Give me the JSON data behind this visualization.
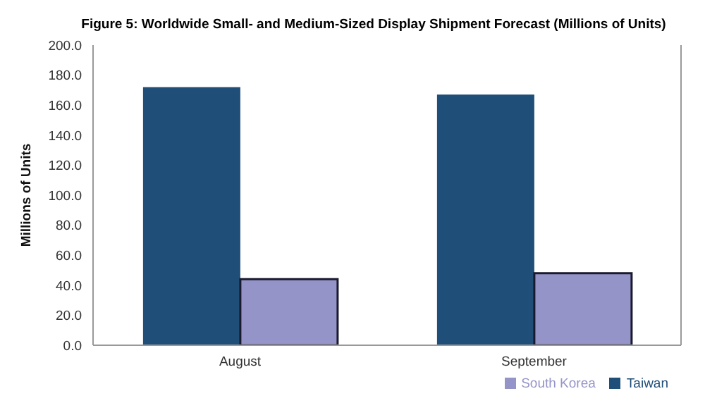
{
  "chart_data": {
    "type": "bar",
    "title": "Figure 5: Worldwide Small- and Medium-Sized Display Shipment Forecast (Millions of Units)",
    "ylabel": "Millions of Units",
    "categories": [
      "August",
      "September"
    ],
    "series": [
      {
        "name": "Taiwan",
        "color": "#1f4e79",
        "values": [
          172,
          167
        ]
      },
      {
        "name": "South Korea",
        "color": "#9594c9",
        "values": [
          44,
          48
        ]
      }
    ],
    "ylim": [
      0,
      200
    ],
    "yticks": [
      {
        "value": 0,
        "label": "0.0"
      },
      {
        "value": 20,
        "label": "20.0"
      },
      {
        "value": 40,
        "label": "40.0"
      },
      {
        "value": 60,
        "label": "60.0"
      },
      {
        "value": 80,
        "label": "80.0"
      },
      {
        "value": 100,
        "label": "100.0"
      },
      {
        "value": 120,
        "label": "120.0"
      },
      {
        "value": 140,
        "label": "140.0"
      },
      {
        "value": 160,
        "label": "160.0"
      },
      {
        "value": 180,
        "label": "180.0"
      },
      {
        "value": 200,
        "label": "200.0"
      }
    ],
    "grid": false,
    "legend": "bottom right"
  }
}
